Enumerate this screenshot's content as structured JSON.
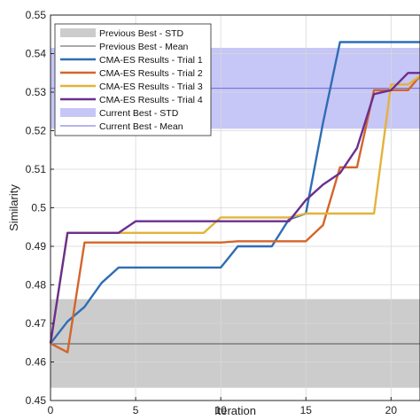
{
  "chart_data": {
    "type": "line",
    "title": "",
    "xlabel": "Iteration",
    "ylabel": "Similarity",
    "xlim": [
      0,
      21.7
    ],
    "ylim": [
      0.45,
      0.55
    ],
    "xticks": [
      0,
      5,
      10,
      15,
      20
    ],
    "yticks": [
      0.45,
      0.46,
      0.47,
      0.48,
      0.49,
      0.5,
      0.51,
      0.52,
      0.53,
      0.54,
      0.55
    ],
    "xtick_labels": [
      "0",
      "5",
      "10",
      "15",
      "20"
    ],
    "ytick_labels": [
      "0.45",
      "0.46",
      "0.47",
      "0.48",
      "0.49",
      "0.5",
      "0.51",
      "0.52",
      "0.53",
      "0.54",
      "0.55"
    ],
    "grid": true,
    "legend_position": "top-left",
    "bands": [
      {
        "name": "Previous Best - STD",
        "low": 0.4533,
        "high": 0.4763,
        "color": "#cccccc"
      },
      {
        "name": "Current Best - STD",
        "low": 0.5205,
        "high": 0.5415,
        "color": "#c6c6f7"
      }
    ],
    "reference_lines": [
      {
        "name": "Previous Best - Mean",
        "value": 0.4647,
        "color": "#555555"
      },
      {
        "name": "Current Best - Mean",
        "value": 0.531,
        "color": "#6a6ad8"
      }
    ],
    "series": [
      {
        "name": "CMA-ES Results - Trial 1",
        "color": "#2f6db5",
        "x": [
          0,
          1,
          2,
          3,
          4,
          5,
          6,
          7,
          8,
          9,
          10,
          11,
          12,
          13,
          14,
          15,
          16,
          17,
          18,
          19,
          20,
          21,
          21.7
        ],
        "y": [
          0.4648,
          0.4705,
          0.4743,
          0.4805,
          0.4845,
          0.4845,
          0.4845,
          0.4845,
          0.4845,
          0.4845,
          0.4845,
          0.49,
          0.49,
          0.49,
          0.497,
          0.4985,
          0.522,
          0.543,
          0.543,
          0.543,
          0.543,
          0.543,
          0.543
        ]
      },
      {
        "name": "CMA-ES Results - Trial 2",
        "color": "#d4652a",
        "x": [
          0,
          1,
          2,
          3,
          4,
          5,
          6,
          7,
          8,
          9,
          10,
          11,
          12,
          13,
          14,
          15,
          16,
          17,
          18,
          19,
          20,
          21,
          21.7
        ],
        "y": [
          0.4648,
          0.4625,
          0.491,
          0.491,
          0.491,
          0.491,
          0.491,
          0.491,
          0.491,
          0.491,
          0.491,
          0.4913,
          0.4913,
          0.4913,
          0.4913,
          0.4913,
          0.4955,
          0.5105,
          0.5105,
          0.5305,
          0.5305,
          0.5305,
          0.5342
        ]
      },
      {
        "name": "CMA-ES Results - Trial 3",
        "color": "#e3b33a",
        "x": [
          0,
          1,
          2,
          3,
          4,
          5,
          6,
          7,
          8,
          9,
          10,
          11,
          12,
          13,
          14,
          15,
          16,
          17,
          18,
          19,
          20,
          21,
          21.7
        ],
        "y": [
          0.4648,
          0.4935,
          0.4935,
          0.4935,
          0.4935,
          0.4935,
          0.4935,
          0.4935,
          0.4935,
          0.4935,
          0.4975,
          0.4975,
          0.4975,
          0.4975,
          0.4975,
          0.4985,
          0.4985,
          0.4985,
          0.4985,
          0.4985,
          0.532,
          0.532,
          0.5342
        ]
      },
      {
        "name": "CMA-ES Results - Trial 4",
        "color": "#6a2f8f",
        "x": [
          0,
          1,
          2,
          3,
          4,
          5,
          6,
          7,
          8,
          9,
          10,
          11,
          12,
          13,
          14,
          15,
          16,
          17,
          18,
          19,
          20,
          21,
          21.7
        ],
        "y": [
          0.4648,
          0.4935,
          0.4935,
          0.4935,
          0.4935,
          0.4965,
          0.4965,
          0.4965,
          0.4965,
          0.4965,
          0.4965,
          0.4965,
          0.4965,
          0.4965,
          0.4965,
          0.502,
          0.506,
          0.509,
          0.5155,
          0.5295,
          0.5305,
          0.535,
          0.535
        ]
      }
    ]
  }
}
